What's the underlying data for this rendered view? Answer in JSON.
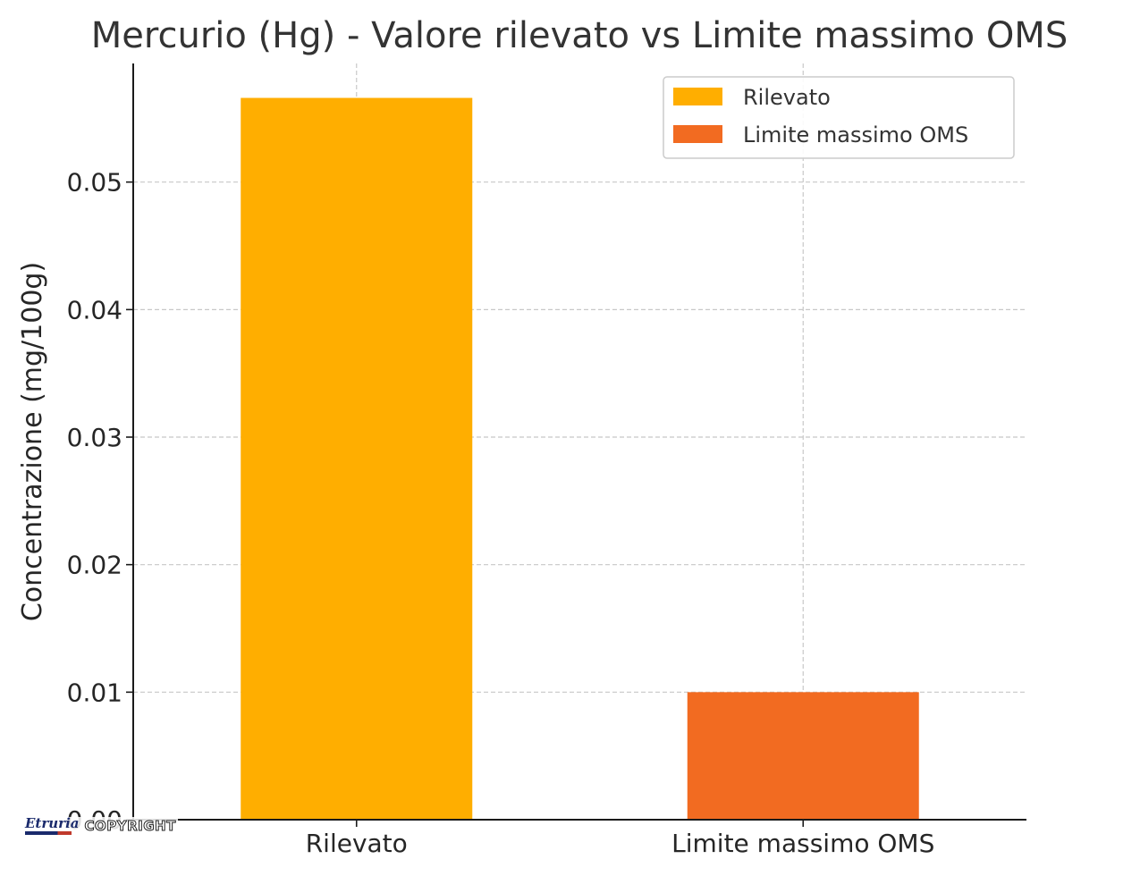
{
  "chart_data": {
    "type": "bar",
    "title": "Mercurio (Hg) - Valore rilevato vs Limite massimo OMS",
    "xlabel": "",
    "ylabel": "Concentrazione (mg/100g)",
    "categories": [
      "Rilevato",
      "Limite massimo OMS"
    ],
    "values": [
      0.0566,
      0.01
    ],
    "colors": [
      "#FFAE00",
      "#F26B21"
    ],
    "ylim": [
      0,
      0.0593
    ],
    "yticks": [
      0.0,
      0.01,
      0.02,
      0.03,
      0.04,
      0.05
    ],
    "ytick_labels": [
      "0.00",
      "0.01",
      "0.02",
      "0.03",
      "0.04",
      "0.05"
    ],
    "grid": true,
    "legend": {
      "position": "top-right",
      "entries": [
        {
          "label": "Rilevato",
          "color": "#FFAE00"
        },
        {
          "label": "Limite massimo OMS",
          "color": "#F26B21"
        }
      ]
    }
  },
  "watermark": {
    "brand": "Etruria",
    "text": "COPYRIGHT"
  }
}
